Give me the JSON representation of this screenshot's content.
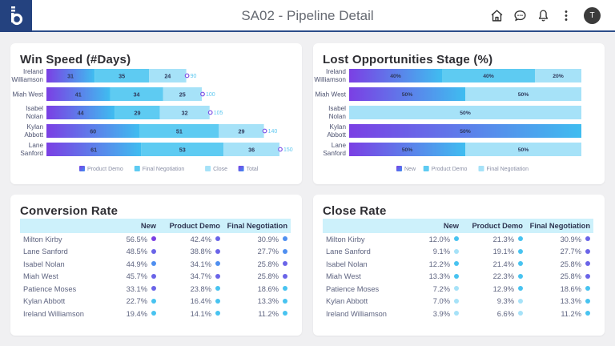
{
  "header": {
    "title": "SA02 - Pipeline Detail",
    "logo_letter": "b",
    "avatar_initial": "T",
    "icons": [
      "home-icon",
      "chat-icon",
      "bell-icon",
      "more-vert-icon"
    ]
  },
  "colors": {
    "brand": "#24427f",
    "purple": "#7b3fe4",
    "blue": "#3fbdf0",
    "cyan": "#5ecbf2",
    "light_cyan": "#a6e2f8",
    "dot_purple": "#7b3fe4",
    "dot_indigo": "#6a64e8",
    "dot_blue": "#4f8ff0",
    "dot_cyan": "#48c3f0",
    "dot_light": "#a6e2f8"
  },
  "chart_data": [
    {
      "type": "bar",
      "orientation": "horizontal",
      "stacked": true,
      "title": "Win Speed (#Days)",
      "categories": [
        "Ireland Williamson",
        "Miah West",
        "Isabel Nolan",
        "Kylan Abbott",
        "Lane Sanford"
      ],
      "category_lines": [
        [
          "Ireland",
          "Williamson"
        ],
        [
          "Miah West"
        ],
        [
          "Isabel",
          "Nolan"
        ],
        [
          "Kylan",
          "Abbott"
        ],
        [
          "Lane",
          "Sanford"
        ]
      ],
      "series": [
        {
          "name": "Product Demo",
          "values": [
            31,
            41,
            44,
            60,
            61
          ]
        },
        {
          "name": "Final Negotiation",
          "values": [
            35,
            34,
            29,
            51,
            53
          ]
        },
        {
          "name": "Close",
          "values": [
            24,
            25,
            32,
            29,
            36
          ]
        }
      ],
      "totals": {
        "name": "Total",
        "values": [
          90,
          100,
          105,
          140,
          150
        ]
      },
      "legend": [
        "Product Demo",
        "Final Negotiation",
        "Close",
        "Total"
      ],
      "legend_position": "bottom",
      "xlim": [
        0,
        150
      ],
      "grid": false
    },
    {
      "type": "bar",
      "orientation": "horizontal",
      "stacked": true,
      "percent": true,
      "title": "Lost Opportunities Stage (%)",
      "categories": [
        "Ireland Williamson",
        "Miah West",
        "Isabel Nolan",
        "Kylan Abbott",
        "Lane Sanford"
      ],
      "category_lines": [
        [
          "Ireland",
          "Williamson"
        ],
        [
          "Miah West"
        ],
        [
          "Isabel",
          "Nolan"
        ],
        [
          "Kylan",
          "Abbott"
        ],
        [
          "Lane",
          "Sanford"
        ]
      ],
      "series": [
        {
          "name": "New",
          "values": [
            40,
            50,
            0,
            50,
            50
          ]
        },
        {
          "name": "Product Demo",
          "values": [
            40,
            0,
            0,
            0,
            0
          ]
        },
        {
          "name": "Final Negotiation",
          "values": [
            20,
            50,
            50,
            0,
            50
          ]
        }
      ],
      "legend": [
        "New",
        "Product Demo",
        "Final Negotiation"
      ],
      "legend_position": "bottom",
      "grid": false
    }
  ],
  "conversion_rate": {
    "title": "Conversion Rate",
    "columns": [
      "",
      "New",
      "Product Demo",
      "Final Negotiation"
    ],
    "rows": [
      {
        "name": "Milton Kirby",
        "values": [
          "56.5%",
          "42.4%",
          "30.9%"
        ],
        "dots": [
          "dot_purple",
          "dot_indigo",
          "dot_blue"
        ]
      },
      {
        "name": "Lane Sanford",
        "values": [
          "48.5%",
          "38.8%",
          "27.7%"
        ],
        "dots": [
          "dot_indigo",
          "dot_indigo",
          "dot_blue"
        ]
      },
      {
        "name": "Isabel Nolan",
        "values": [
          "44.9%",
          "34.1%",
          "25.8%"
        ],
        "dots": [
          "dot_blue",
          "dot_blue",
          "dot_indigo"
        ]
      },
      {
        "name": "Miah West",
        "values": [
          "45.7%",
          "34.7%",
          "25.8%"
        ],
        "dots": [
          "dot_indigo",
          "dot_indigo",
          "dot_indigo"
        ]
      },
      {
        "name": "Patience Moses",
        "values": [
          "33.1%",
          "23.8%",
          "18.6%"
        ],
        "dots": [
          "dot_indigo",
          "dot_cyan",
          "dot_cyan"
        ]
      },
      {
        "name": "Kylan Abbott",
        "values": [
          "22.7%",
          "16.4%",
          "13.3%"
        ],
        "dots": [
          "dot_cyan",
          "dot_cyan",
          "dot_cyan"
        ]
      },
      {
        "name": "Ireland Williamson",
        "values": [
          "19.4%",
          "14.1%",
          "11.2%"
        ],
        "dots": [
          "dot_cyan",
          "dot_cyan",
          "dot_cyan"
        ]
      }
    ]
  },
  "close_rate": {
    "title": "Close Rate",
    "columns": [
      "",
      "New",
      "Product Demo",
      "Final Negotiation"
    ],
    "rows": [
      {
        "name": "Milton Kirby",
        "values": [
          "12.0%",
          "21.3%",
          "30.9%"
        ],
        "dots": [
          "dot_cyan",
          "dot_cyan",
          "dot_indigo"
        ]
      },
      {
        "name": "Lane Sanford",
        "values": [
          "9.1%",
          "19.1%",
          "27.7%"
        ],
        "dots": [
          "dot_light",
          "dot_cyan",
          "dot_indigo"
        ]
      },
      {
        "name": "Isabel Nolan",
        "values": [
          "12.2%",
          "21.4%",
          "25.8%"
        ],
        "dots": [
          "dot_cyan",
          "dot_cyan",
          "dot_indigo"
        ]
      },
      {
        "name": "Miah West",
        "values": [
          "13.3%",
          "22.3%",
          "25.8%"
        ],
        "dots": [
          "dot_cyan",
          "dot_cyan",
          "dot_indigo"
        ]
      },
      {
        "name": "Patience Moses",
        "values": [
          "7.2%",
          "12.9%",
          "18.6%"
        ],
        "dots": [
          "dot_light",
          "dot_cyan",
          "dot_cyan"
        ]
      },
      {
        "name": "Kylan Abbott",
        "values": [
          "7.0%",
          "9.3%",
          "13.3%"
        ],
        "dots": [
          "dot_light",
          "dot_light",
          "dot_cyan"
        ]
      },
      {
        "name": "Ireland Williamson",
        "values": [
          "3.9%",
          "6.6%",
          "11.2%"
        ],
        "dots": [
          "dot_light",
          "dot_light",
          "dot_cyan"
        ]
      }
    ]
  }
}
